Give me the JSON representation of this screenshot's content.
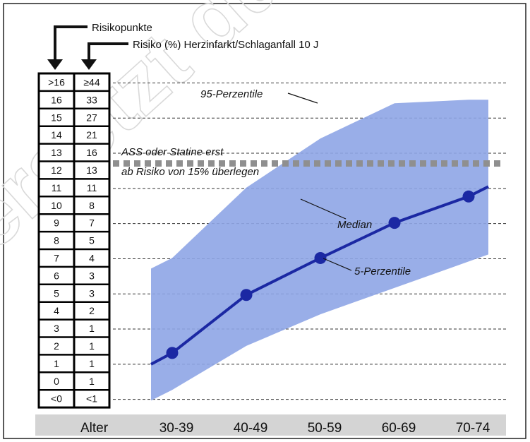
{
  "chart_data": {
    "type": "line",
    "title": "",
    "categories": [
      "30-39",
      "40-49",
      "50-59",
      "60-69",
      "70-74"
    ],
    "xlabel": "Alter",
    "ylabel": "",
    "y_scale": "risk points (ordinal)",
    "ylim": [
      -1,
      16
    ],
    "series": [
      {
        "name": "Median",
        "values": [
          1.6,
          4.9,
          7.0,
          9.0,
          10.5
        ]
      },
      {
        "name": "95-Perzentile",
        "values": [
          7.0,
          11.0,
          13.8,
          15.8,
          16.0
        ]
      },
      {
        "name": "5-Perzentile",
        "values": [
          -0.5,
          2.0,
          3.8,
          5.3,
          6.8
        ]
      }
    ],
    "risk_table": {
      "header_points": "Risikopunkte",
      "header_risk": "Risiko (%) Herzinfarkt/Schlaganfall 10 J",
      "rows": [
        {
          "points": ">16",
          "risk": "≥44"
        },
        {
          "points": "16",
          "risk": "33"
        },
        {
          "points": "15",
          "risk": "27"
        },
        {
          "points": "14",
          "risk": "21"
        },
        {
          "points": "13",
          "risk": "16"
        },
        {
          "points": "12",
          "risk": "13"
        },
        {
          "points": "11",
          "risk": "11"
        },
        {
          "points": "10",
          "risk": "8"
        },
        {
          "points": "9",
          "risk": "7"
        },
        {
          "points": "8",
          "risk": "5"
        },
        {
          "points": "7",
          "risk": "4"
        },
        {
          "points": "6",
          "risk": "3"
        },
        {
          "points": "5",
          "risk": "3"
        },
        {
          "points": "4",
          "risk": "2"
        },
        {
          "points": "3",
          "risk": "1"
        },
        {
          "points": "2",
          "risk": "1"
        },
        {
          "points": "1",
          "risk": "1"
        },
        {
          "points": "0",
          "risk": "1"
        },
        {
          "points": "<0",
          "risk": "<1"
        }
      ]
    },
    "threshold": {
      "value": 12.5,
      "label_line1": "ASS oder Statine erst",
      "label_line2": "ab Risiko von 15% überlegen"
    },
    "annotations": {
      "p95": "95-Perzentile",
      "median": "Median",
      "p5": "5-Perzentile"
    },
    "grid": true,
    "colors": {
      "band": "#8ea5e6",
      "line": "#1b28a3",
      "threshold": "#8f8f8f",
      "axis_bar": "#d4d4d4"
    },
    "watermark": "ersetzt dur"
  }
}
